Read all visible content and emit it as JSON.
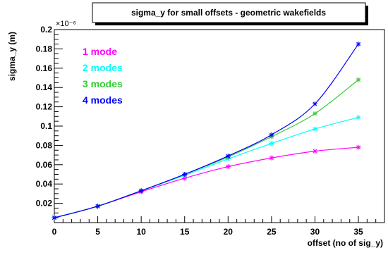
{
  "chart_data": {
    "type": "line",
    "title": "sigma_y for small offsets - geometric wakefields",
    "xlabel": "offset (no of sig_y)",
    "ylabel": "sigma_y (m)",
    "y_exponent_label": "×10⁻⁶",
    "xlim": [
      0,
      38
    ],
    "ylim": [
      0,
      0.2
    ],
    "x_ticks": [
      "0",
      "5",
      "10",
      "15",
      "20",
      "25",
      "30",
      "35"
    ],
    "y_ticks": [
      "0.02",
      "0.04",
      "0.06",
      "0.08",
      "0.1",
      "0.12",
      "0.14",
      "0.16",
      "0.18",
      "0.2"
    ],
    "x": [
      0,
      5,
      10,
      15,
      20,
      25,
      30,
      35
    ],
    "series": [
      {
        "name": "1 mode",
        "color": "#ff00ff",
        "values": [
          0.005,
          0.017,
          0.032,
          0.046,
          0.058,
          0.067,
          0.074,
          0.078
        ]
      },
      {
        "name": "2 modes",
        "color": "#00ffff",
        "values": [
          0.005,
          0.017,
          0.033,
          0.049,
          0.066,
          0.082,
          0.097,
          0.109
        ]
      },
      {
        "name": "3 modes",
        "color": "#33cc33",
        "values": [
          0.005,
          0.017,
          0.033,
          0.05,
          0.068,
          0.089,
          0.113,
          0.148
        ]
      },
      {
        "name": "4 modes",
        "color": "#0000ff",
        "values": [
          0.005,
          0.017,
          0.033,
          0.05,
          0.069,
          0.091,
          0.123,
          0.185
        ]
      }
    ],
    "grid": false,
    "legend_position": "top-left"
  }
}
